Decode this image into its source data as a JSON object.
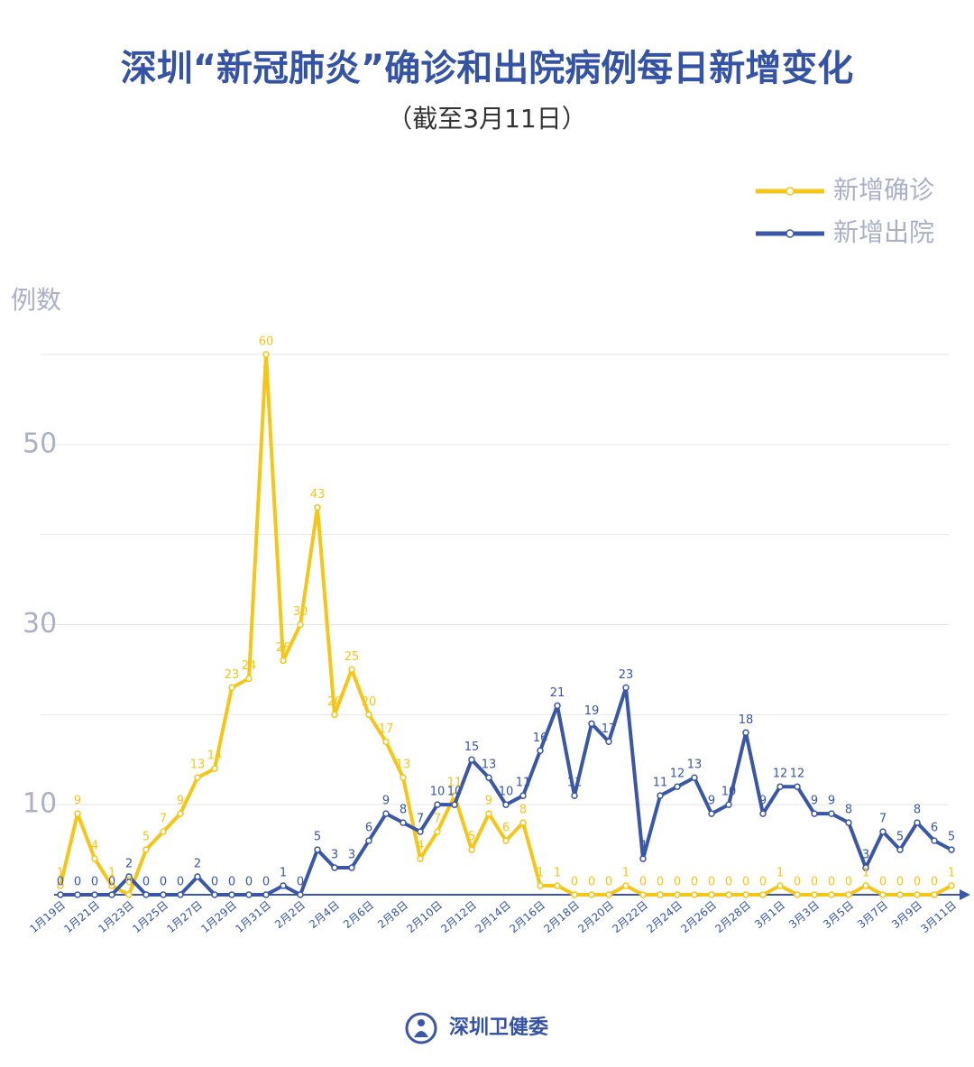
{
  "chart_data": {
    "type": "line",
    "title": "深圳“新冠肺炎”确诊和出院病例每日新增变化",
    "subtitle": "（截至3月11日）",
    "y_label": "例数",
    "source": "深圳卫健委",
    "categories": [
      "1月19日",
      null,
      "1月21日",
      null,
      "1月23日",
      null,
      "1月25日",
      null,
      "1月27日",
      null,
      "1月29日",
      null,
      "1月31日",
      null,
      "2月2日",
      null,
      "2月4日",
      null,
      "2月6日",
      null,
      "2月8日",
      null,
      "2月10日",
      null,
      "2月12日",
      null,
      "2月14日",
      null,
      "2月16日",
      null,
      "2月18日",
      null,
      "2月20日",
      null,
      "2月22日",
      null,
      "2月24日",
      null,
      "2月26日",
      null,
      "2月28日",
      null,
      "3月1日",
      null,
      "3月3日",
      null,
      "3月5日",
      null,
      "3月7日",
      null,
      "3月9日",
      null,
      "3月11日"
    ],
    "series": [
      {
        "name": "新增确诊",
        "color": "#f5c518",
        "values": [
          1,
          9,
          4,
          1,
          0,
          5,
          7,
          9,
          13,
          14,
          23,
          24,
          60,
          26,
          30,
          43,
          20,
          25,
          20,
          17,
          13,
          4,
          7,
          11,
          5,
          9,
          6,
          8,
          1,
          1,
          0,
          0,
          0,
          1,
          0,
          0,
          0,
          0,
          0,
          0,
          0,
          0,
          1,
          0,
          0,
          0,
          0,
          1,
          0,
          0,
          0,
          0,
          1
        ]
      },
      {
        "name": "新增出院",
        "color": "#3a56a6",
        "values": [
          0,
          0,
          0,
          0,
          2,
          0,
          0,
          0,
          2,
          0,
          0,
          0,
          0,
          1,
          0,
          5,
          3,
          3,
          6,
          9,
          8,
          7,
          10,
          10,
          15,
          13,
          10,
          11,
          16,
          21,
          11,
          19,
          17,
          23,
          4,
          11,
          12,
          13,
          9,
          10,
          18,
          9,
          12,
          12,
          9,
          9,
          8,
          3,
          7,
          5,
          8,
          6,
          5
        ]
      }
    ],
    "ylim": [
      0,
      60
    ],
    "yticks": [
      10,
      30,
      50
    ],
    "ygrid": [
      10,
      20,
      30,
      40,
      50,
      60
    ],
    "legend": "top-right"
  }
}
